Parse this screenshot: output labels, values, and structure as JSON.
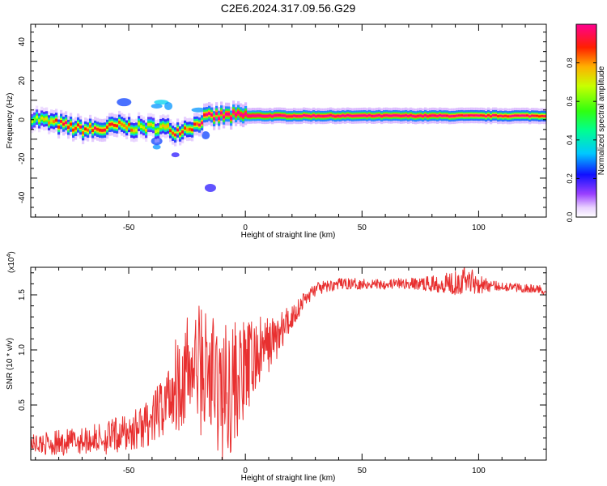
{
  "title": "C2E6.2024.317.09.56.G29",
  "colors": {
    "snr_line": "#e83030",
    "ridge_core": "#ff1030",
    "ridge_mid": "#30ff40",
    "ridge_outer": "#2040ff",
    "halo": "#c8a0ff"
  },
  "colorbar": {
    "label": "Normalized spectral amplitude",
    "ticks": [
      "0.0",
      "0.2",
      "0.4",
      "0.6",
      "0.8"
    ],
    "range": [
      0,
      1
    ],
    "colormap": "rainbow (white-violet to magenta-red)"
  },
  "chart_data": [
    {
      "type": "heatmap",
      "title": "C2E6.2024.317.09.56.G29",
      "xlabel": "Height of straight line (km)",
      "ylabel": "Frequency (Hz)",
      "xlim": [
        -92,
        129
      ],
      "ylim": [
        -50,
        49
      ],
      "xticks": [
        "-50",
        "0",
        "50",
        "100"
      ],
      "yticks": [
        "-40",
        "-20",
        "0",
        "20",
        "40"
      ],
      "ridge": {
        "x": [
          -92,
          -85,
          -78,
          -70,
          -62,
          -55,
          -48,
          -42,
          -36,
          -30,
          -25,
          -22,
          -18,
          -10,
          0,
          20,
          40,
          60,
          80,
          100,
          120,
          129
        ],
        "freq": [
          1,
          -1,
          -3,
          -5,
          -5,
          -3,
          -4,
          -4,
          -4,
          -6,
          -4,
          -3,
          1,
          2,
          2,
          2,
          2,
          2,
          2,
          2,
          2,
          2
        ],
        "level": [
          0.55,
          0.7,
          0.85,
          0.8,
          0.85,
          0.8,
          0.7,
          0.6,
          0.7,
          0.8,
          0.75,
          0.8,
          0.9,
          0.95,
          1.0,
          0.95,
          0.95,
          0.95,
          0.95,
          0.9,
          0.9,
          0.85
        ]
      },
      "scatter_blobs": [
        {
          "x": -38,
          "freq": -14,
          "level": 0.3
        },
        {
          "x": -38,
          "freq": -11,
          "level": 0.25
        },
        {
          "x": -36,
          "freq": 9,
          "level": 0.35
        },
        {
          "x": -33,
          "freq": 7,
          "level": 0.3
        },
        {
          "x": -38,
          "freq": 7,
          "level": 0.3
        },
        {
          "x": -52,
          "freq": 9,
          "level": 0.25
        },
        {
          "x": -30,
          "freq": -18,
          "level": 0.2
        },
        {
          "x": -15,
          "freq": -35,
          "level": 0.2
        },
        {
          "x": -20,
          "freq": 5,
          "level": 0.3
        },
        {
          "x": -17,
          "freq": -8,
          "level": 0.25
        }
      ]
    },
    {
      "type": "line",
      "xlabel": "Height of straight line (km)",
      "ylabel": "SNR (10 * v/v)",
      "y_multiplier": "(x10",
      "y_multiplier_exp": "4",
      "xlim": [
        -92,
        129
      ],
      "ylim": [
        0,
        17500
      ],
      "xticks": [
        "-50",
        "0",
        "50",
        "100"
      ],
      "yticks": [
        "0.5",
        "1.0",
        "1.5"
      ],
      "series": [
        {
          "x": [
            -92,
            -80,
            -70,
            -60,
            -50,
            -40,
            -35,
            -30,
            -25,
            -20,
            -15,
            -10,
            -5,
            0,
            5,
            10,
            15,
            20,
            25,
            30,
            40,
            50,
            60,
            70,
            80,
            90,
            95,
            100,
            105,
            110,
            120,
            129
          ],
          "y": [
            1500,
            1500,
            1800,
            2000,
            2500,
            3500,
            5000,
            7000,
            8000,
            8500,
            7500,
            6000,
            7000,
            8000,
            9500,
            10500,
            11500,
            13000,
            14500,
            15500,
            16000,
            16000,
            16000,
            16000,
            16000,
            16200,
            16500,
            16000,
            15800,
            15800,
            15600,
            15400
          ],
          "spread": [
            800,
            1200,
            1200,
            1500,
            1800,
            2200,
            3000,
            4500,
            5000,
            6000,
            6500,
            6500,
            6000,
            4500,
            3500,
            2500,
            2000,
            1200,
            800,
            600,
            500,
            500,
            500,
            500,
            700,
            1200,
            1400,
            900,
            500,
            400,
            400,
            400
          ]
        }
      ]
    }
  ]
}
